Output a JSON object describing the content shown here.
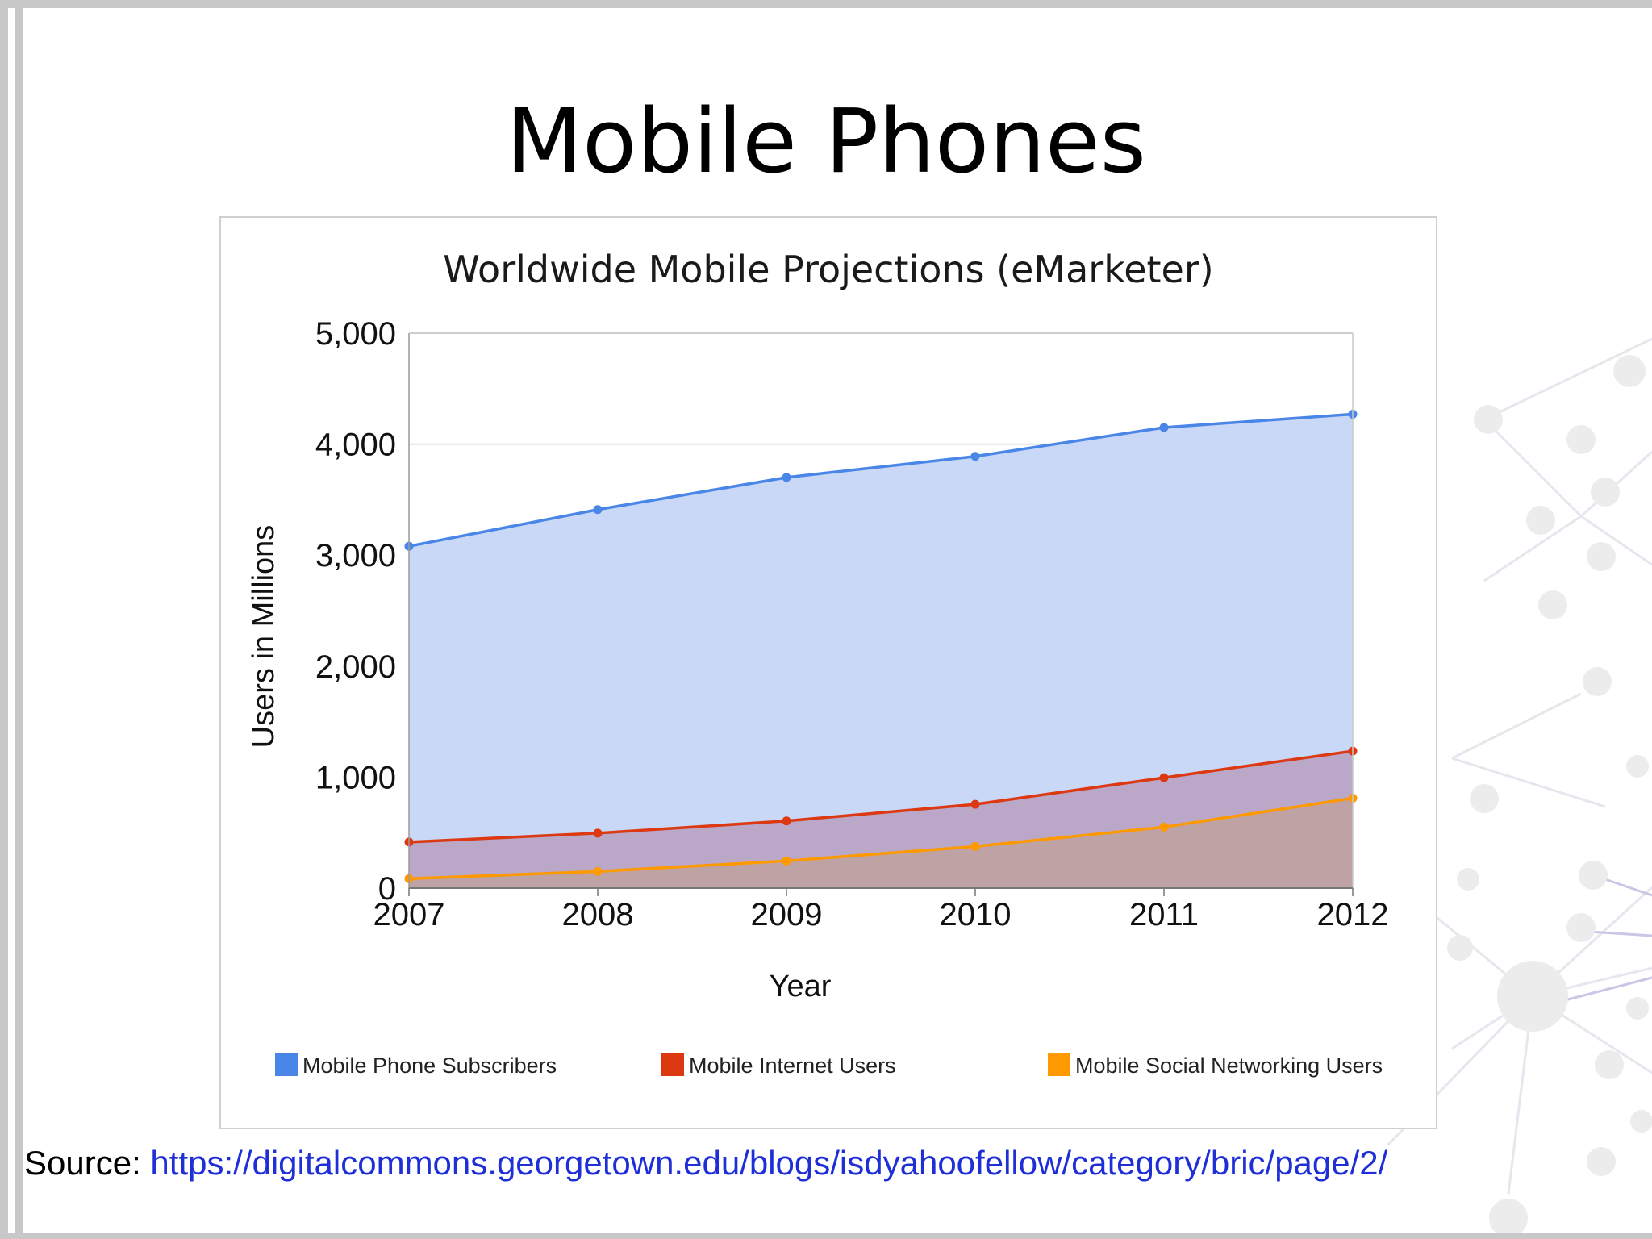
{
  "slide": {
    "title": "Mobile Phones",
    "source_label": "Source: ",
    "source_url": "https://digitalcommons.georgetown.edu/blogs/isdyahoofellow/category/bric/page/2/"
  },
  "chart_data": {
    "type": "area",
    "title": "Worldwide Mobile Projections (eMarketer)",
    "xlabel": "Year",
    "ylabel": "Users in Millions",
    "ylim": [
      0,
      5000
    ],
    "yticks": [
      0,
      1000,
      2000,
      3000,
      4000,
      5000
    ],
    "ytick_labels": [
      "0",
      "1,000",
      "2,000",
      "3,000",
      "4,000",
      "5,000"
    ],
    "categories": [
      "2007",
      "2008",
      "2009",
      "2010",
      "2011",
      "2012"
    ],
    "grid": true,
    "legend_position": "bottom",
    "series": [
      {
        "name": "Mobile Phone Subscribers",
        "color": "#4a86e8",
        "fill": "#c9d8f7",
        "values": [
          3080,
          3410,
          3700,
          3890,
          4150,
          4270
        ]
      },
      {
        "name": "Mobile Internet Users",
        "color": "#dc3912",
        "fill": "#bba7c7",
        "values": [
          415,
          495,
          605,
          755,
          995,
          1235
        ]
      },
      {
        "name": "Mobile Social Networking Users",
        "color": "#ff9900",
        "fill": "#bfa2a3",
        "values": [
          85,
          150,
          245,
          375,
          550,
          810
        ]
      }
    ]
  }
}
